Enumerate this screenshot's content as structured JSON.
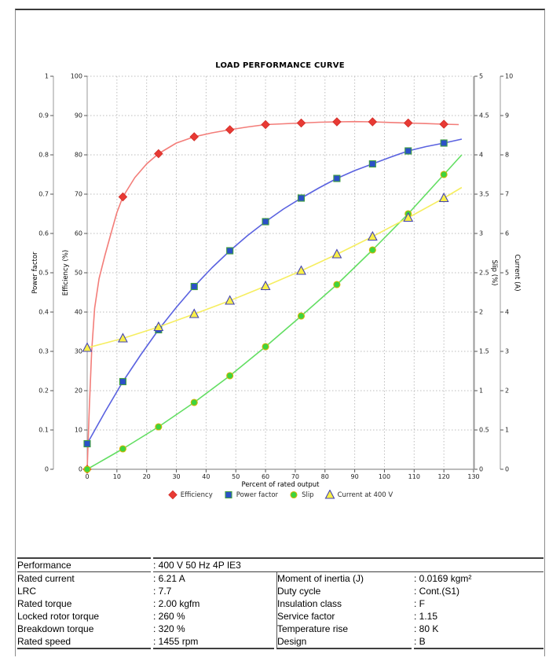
{
  "chart_data": {
    "type": "line",
    "title": "LOAD PERFORMANCE CURVE",
    "xlabel": "Percent of rated output",
    "x_min": 0,
    "x_max": 130,
    "x_tick_step": 10,
    "grid": "dotted",
    "legend_position": "bottom-center",
    "axes": [
      {
        "id": "power_factor",
        "label": "Power factor",
        "side": "left",
        "min": 0,
        "max": 1,
        "step": 0.1
      },
      {
        "id": "efficiency",
        "label": "Efficiency (%)",
        "side": "left",
        "min": 0,
        "max": 100,
        "step": 10
      },
      {
        "id": "slip",
        "label": "Slip (%)",
        "side": "right",
        "min": 0,
        "max": 5,
        "step": 0.5
      },
      {
        "id": "current",
        "label": "Current (A)",
        "side": "right",
        "min": 0,
        "max": 10,
        "step": 1
      }
    ],
    "series": [
      {
        "id": "efficiency",
        "legend_label": "Efficiency",
        "axis": "efficiency",
        "marker": "diamond",
        "marker_fill": "#e83a34",
        "marker_stroke": "#d22c27",
        "line_color": "#f37d79",
        "markers": [
          [
            0,
            0
          ],
          [
            12,
            69.3
          ],
          [
            24,
            80.3
          ],
          [
            36,
            84.6
          ],
          [
            48,
            86.4
          ],
          [
            60,
            87.7
          ],
          [
            72,
            88.1
          ],
          [
            84,
            88.4
          ],
          [
            96,
            88.4
          ],
          [
            108,
            88.1
          ],
          [
            120,
            87.8
          ]
        ],
        "curve": [
          [
            0,
            0
          ],
          [
            0.7,
            15
          ],
          [
            1.5,
            30
          ],
          [
            2.5,
            41
          ],
          [
            4,
            48.5
          ],
          [
            5,
            51.5
          ],
          [
            6,
            54.5
          ],
          [
            8,
            60
          ],
          [
            10,
            65.3
          ],
          [
            12,
            69.3
          ],
          [
            16,
            74.2
          ],
          [
            20,
            77.7
          ],
          [
            24,
            80.3
          ],
          [
            30,
            83
          ],
          [
            36,
            84.6
          ],
          [
            42,
            85.6
          ],
          [
            48,
            86.4
          ],
          [
            54,
            87.1
          ],
          [
            60,
            87.7
          ],
          [
            66,
            87.9
          ],
          [
            72,
            88.1
          ],
          [
            78,
            88.3
          ],
          [
            84,
            88.4
          ],
          [
            90,
            88.45
          ],
          [
            96,
            88.4
          ],
          [
            102,
            88.25
          ],
          [
            108,
            88.1
          ],
          [
            114,
            87.95
          ],
          [
            120,
            87.8
          ],
          [
            125,
            87.7
          ]
        ]
      },
      {
        "id": "power_factor",
        "legend_label": "Power factor",
        "axis": "power_factor",
        "marker": "square",
        "marker_fill": "#2b50c8",
        "marker_stroke": "#3f9e3f",
        "line_color": "#5a62e0",
        "markers": [
          [
            0,
            0.065
          ],
          [
            12,
            0.223
          ],
          [
            24,
            0.355
          ],
          [
            36,
            0.465
          ],
          [
            48,
            0.556
          ],
          [
            60,
            0.63
          ],
          [
            72,
            0.69
          ],
          [
            84,
            0.74
          ],
          [
            96,
            0.777
          ],
          [
            108,
            0.81
          ],
          [
            120,
            0.83
          ]
        ],
        "curve": [
          [
            0,
            0.065
          ],
          [
            6,
            0.146
          ],
          [
            12,
            0.223
          ],
          [
            18,
            0.291
          ],
          [
            24,
            0.355
          ],
          [
            30,
            0.412
          ],
          [
            36,
            0.465
          ],
          [
            42,
            0.513
          ],
          [
            48,
            0.556
          ],
          [
            54,
            0.595
          ],
          [
            60,
            0.63
          ],
          [
            66,
            0.662
          ],
          [
            72,
            0.69
          ],
          [
            78,
            0.716
          ],
          [
            84,
            0.74
          ],
          [
            90,
            0.76
          ],
          [
            96,
            0.777
          ],
          [
            102,
            0.794
          ],
          [
            108,
            0.81
          ],
          [
            114,
            0.821
          ],
          [
            120,
            0.83
          ],
          [
            126,
            0.84
          ]
        ]
      },
      {
        "id": "slip",
        "legend_label": "Slip",
        "axis": "slip",
        "marker": "circle",
        "marker_fill": "#3ed43e",
        "marker_stroke": "#d4b400",
        "line_color": "#62de62",
        "markers": [
          [
            0,
            0
          ],
          [
            12,
            0.26
          ],
          [
            24,
            0.54
          ],
          [
            36,
            0.85
          ],
          [
            48,
            1.19
          ],
          [
            60,
            1.56
          ],
          [
            72,
            1.95
          ],
          [
            84,
            2.35
          ],
          [
            96,
            2.79
          ],
          [
            108,
            3.25
          ],
          [
            120,
            3.75
          ]
        ],
        "curve": [
          [
            0,
            0
          ],
          [
            12,
            0.26
          ],
          [
            24,
            0.54
          ],
          [
            36,
            0.85
          ],
          [
            48,
            1.19
          ],
          [
            60,
            1.56
          ],
          [
            72,
            1.95
          ],
          [
            84,
            2.35
          ],
          [
            96,
            2.79
          ],
          [
            108,
            3.25
          ],
          [
            120,
            3.75
          ],
          [
            126,
            4.0
          ]
        ]
      },
      {
        "id": "current",
        "legend_label": "Current at 400 V",
        "axis": "current",
        "marker": "triangle",
        "marker_fill": "#f9ef48",
        "marker_stroke": "#4343b2",
        "line_color": "#f6ee60",
        "markers": [
          [
            0,
            3.09
          ],
          [
            12,
            3.33
          ],
          [
            24,
            3.62
          ],
          [
            36,
            3.95
          ],
          [
            48,
            4.29
          ],
          [
            60,
            4.66
          ],
          [
            72,
            5.05
          ],
          [
            84,
            5.47
          ],
          [
            96,
            5.92
          ],
          [
            108,
            6.4
          ],
          [
            120,
            6.9
          ]
        ],
        "curve": [
          [
            0,
            3.09
          ],
          [
            12,
            3.33
          ],
          [
            24,
            3.62
          ],
          [
            36,
            3.95
          ],
          [
            48,
            4.29
          ],
          [
            60,
            4.66
          ],
          [
            72,
            5.05
          ],
          [
            84,
            5.47
          ],
          [
            96,
            5.92
          ],
          [
            108,
            6.4
          ],
          [
            120,
            6.9
          ],
          [
            126,
            7.17
          ]
        ]
      }
    ]
  },
  "table": {
    "performance_row": {
      "label": "Performance",
      "value": ": 400 V 50 Hz 4P IE3"
    },
    "rows": [
      {
        "l1": "Rated current",
        "v1": ": 6.21 A",
        "l2": "Moment of inertia (J)",
        "v2": ": 0.0169 kgm²"
      },
      {
        "l1": "LRC",
        "v1": ": 7.7",
        "l2": "Duty cycle",
        "v2": ": Cont.(S1)"
      },
      {
        "l1": "Rated torque",
        "v1": ": 2.00 kgfm",
        "l2": "Insulation class",
        "v2": ": F"
      },
      {
        "l1": "Locked rotor torque",
        "v1": ": 260 %",
        "l2": "Service factor",
        "v2": ": 1.15"
      },
      {
        "l1": "Breakdown torque",
        "v1": ": 320 %",
        "l2": "Temperature rise",
        "v2": ": 80 K"
      },
      {
        "l1": "Rated speed",
        "v1": ": 1455 rpm",
        "l2": "Design",
        "v2": ": B"
      }
    ]
  }
}
